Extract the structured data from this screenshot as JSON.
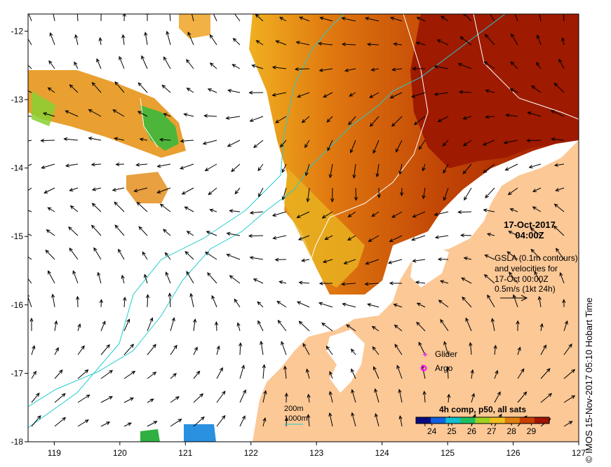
{
  "map": {
    "title_date": "17-Oct-2017",
    "title_time": "04:00Z",
    "info_lines": [
      "GSLA (0.1m contours)",
      "and velocities for",
      "17-Oct 00:00Z",
      "0.5m/s (1kt 24h)"
    ],
    "x_ticks": [
      "119",
      "120",
      "121",
      "122",
      "123",
      "124",
      "125",
      "126",
      "127"
    ],
    "y_ticks": [
      "-12",
      "-13",
      "-14",
      "-15",
      "-16",
      "-17",
      "-18"
    ],
    "lon_range": [
      118.6,
      127.0
    ],
    "lat_range": [
      -18.0,
      -11.75
    ],
    "legend": {
      "glider_label": "Glider",
      "argo_label": "Argo",
      "glider_color": "#e040e0",
      "argo_color": "#ff00ff"
    },
    "isobaths": {
      "label_200": "200m",
      "label_1000": "1000m",
      "color": "#22cccc"
    },
    "colorbar": {
      "title": "4h comp, p50, all sats",
      "ticks": [
        "24",
        "25",
        "26",
        "27",
        "28",
        "29"
      ],
      "colors": [
        "#0a0a80",
        "#1060e0",
        "#10c0d0",
        "#20c060",
        "#a0d020",
        "#f0c020",
        "#e08010",
        "#c84000",
        "#a01400"
      ]
    },
    "credit": "© IMOS 15-Nov-2017 05:10 Hobart Time",
    "land_color": "#fcc896",
    "sea_colors": {
      "warm": "#c04010",
      "hot": "#9c1a00",
      "mid": "#e08a10",
      "cool": "#e8c030",
      "green": "#40c030"
    }
  }
}
